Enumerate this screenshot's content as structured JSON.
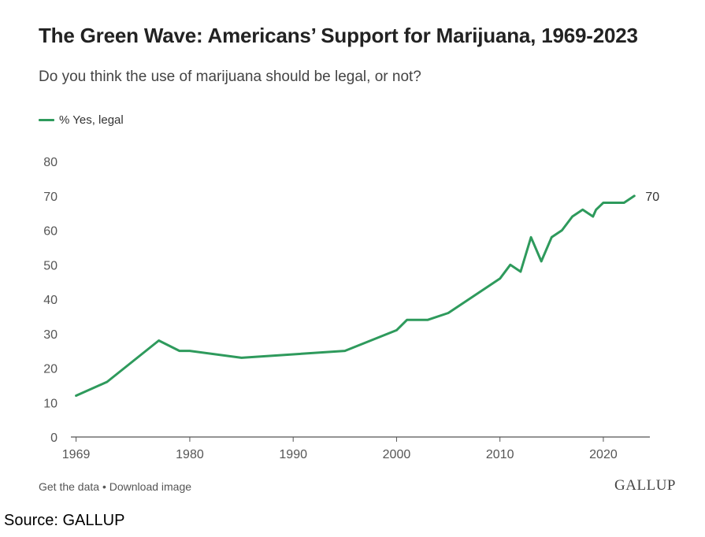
{
  "colors": {
    "series": "#2e9a5c",
    "axis": "#555555",
    "tick_text": "#555555"
  },
  "footer": {
    "get_data": "Get the data",
    "separator": "•",
    "download": "Download image",
    "logo": "GALLUP"
  },
  "source_note": "Source: GALLUP",
  "chart_data": {
    "type": "line",
    "title": "The Green Wave: Americans’ Support for Marijuana, 1969-2023",
    "subtitle": "Do you think the use of marijuana should be legal, or not?",
    "xlim": [
      1968.5,
      2024.5
    ],
    "ylim": [
      0,
      80
    ],
    "yticks": [
      0,
      10,
      20,
      30,
      40,
      50,
      60,
      70,
      80
    ],
    "xticks": [
      1969,
      1980,
      1990,
      2000,
      2010,
      2020
    ],
    "legend_placement": "top-left",
    "grid": false,
    "series": [
      {
        "name": "% Yes, legal",
        "end_label": "70",
        "points": [
          {
            "x": 1969,
            "y": 12
          },
          {
            "x": 1972,
            "y": 16
          },
          {
            "x": 1977,
            "y": 28
          },
          {
            "x": 1979,
            "y": 25
          },
          {
            "x": 1980,
            "y": 25
          },
          {
            "x": 1985,
            "y": 23
          },
          {
            "x": 1995,
            "y": 25
          },
          {
            "x": 2000,
            "y": 31
          },
          {
            "x": 2001,
            "y": 34
          },
          {
            "x": 2003,
            "y": 34
          },
          {
            "x": 2005,
            "y": 36
          },
          {
            "x": 2009,
            "y": 44
          },
          {
            "x": 2010,
            "y": 46
          },
          {
            "x": 2011,
            "y": 50
          },
          {
            "x": 2012,
            "y": 48
          },
          {
            "x": 2013,
            "y": 58
          },
          {
            "x": 2014,
            "y": 51
          },
          {
            "x": 2015,
            "y": 58
          },
          {
            "x": 2016,
            "y": 60
          },
          {
            "x": 2017,
            "y": 64
          },
          {
            "x": 2018,
            "y": 66
          },
          {
            "x": 2019,
            "y": 64
          },
          {
            "x": 2019.3,
            "y": 66
          },
          {
            "x": 2020,
            "y": 68
          },
          {
            "x": 2021,
            "y": 68
          },
          {
            "x": 2022,
            "y": 68
          },
          {
            "x": 2023,
            "y": 70
          }
        ]
      }
    ]
  }
}
